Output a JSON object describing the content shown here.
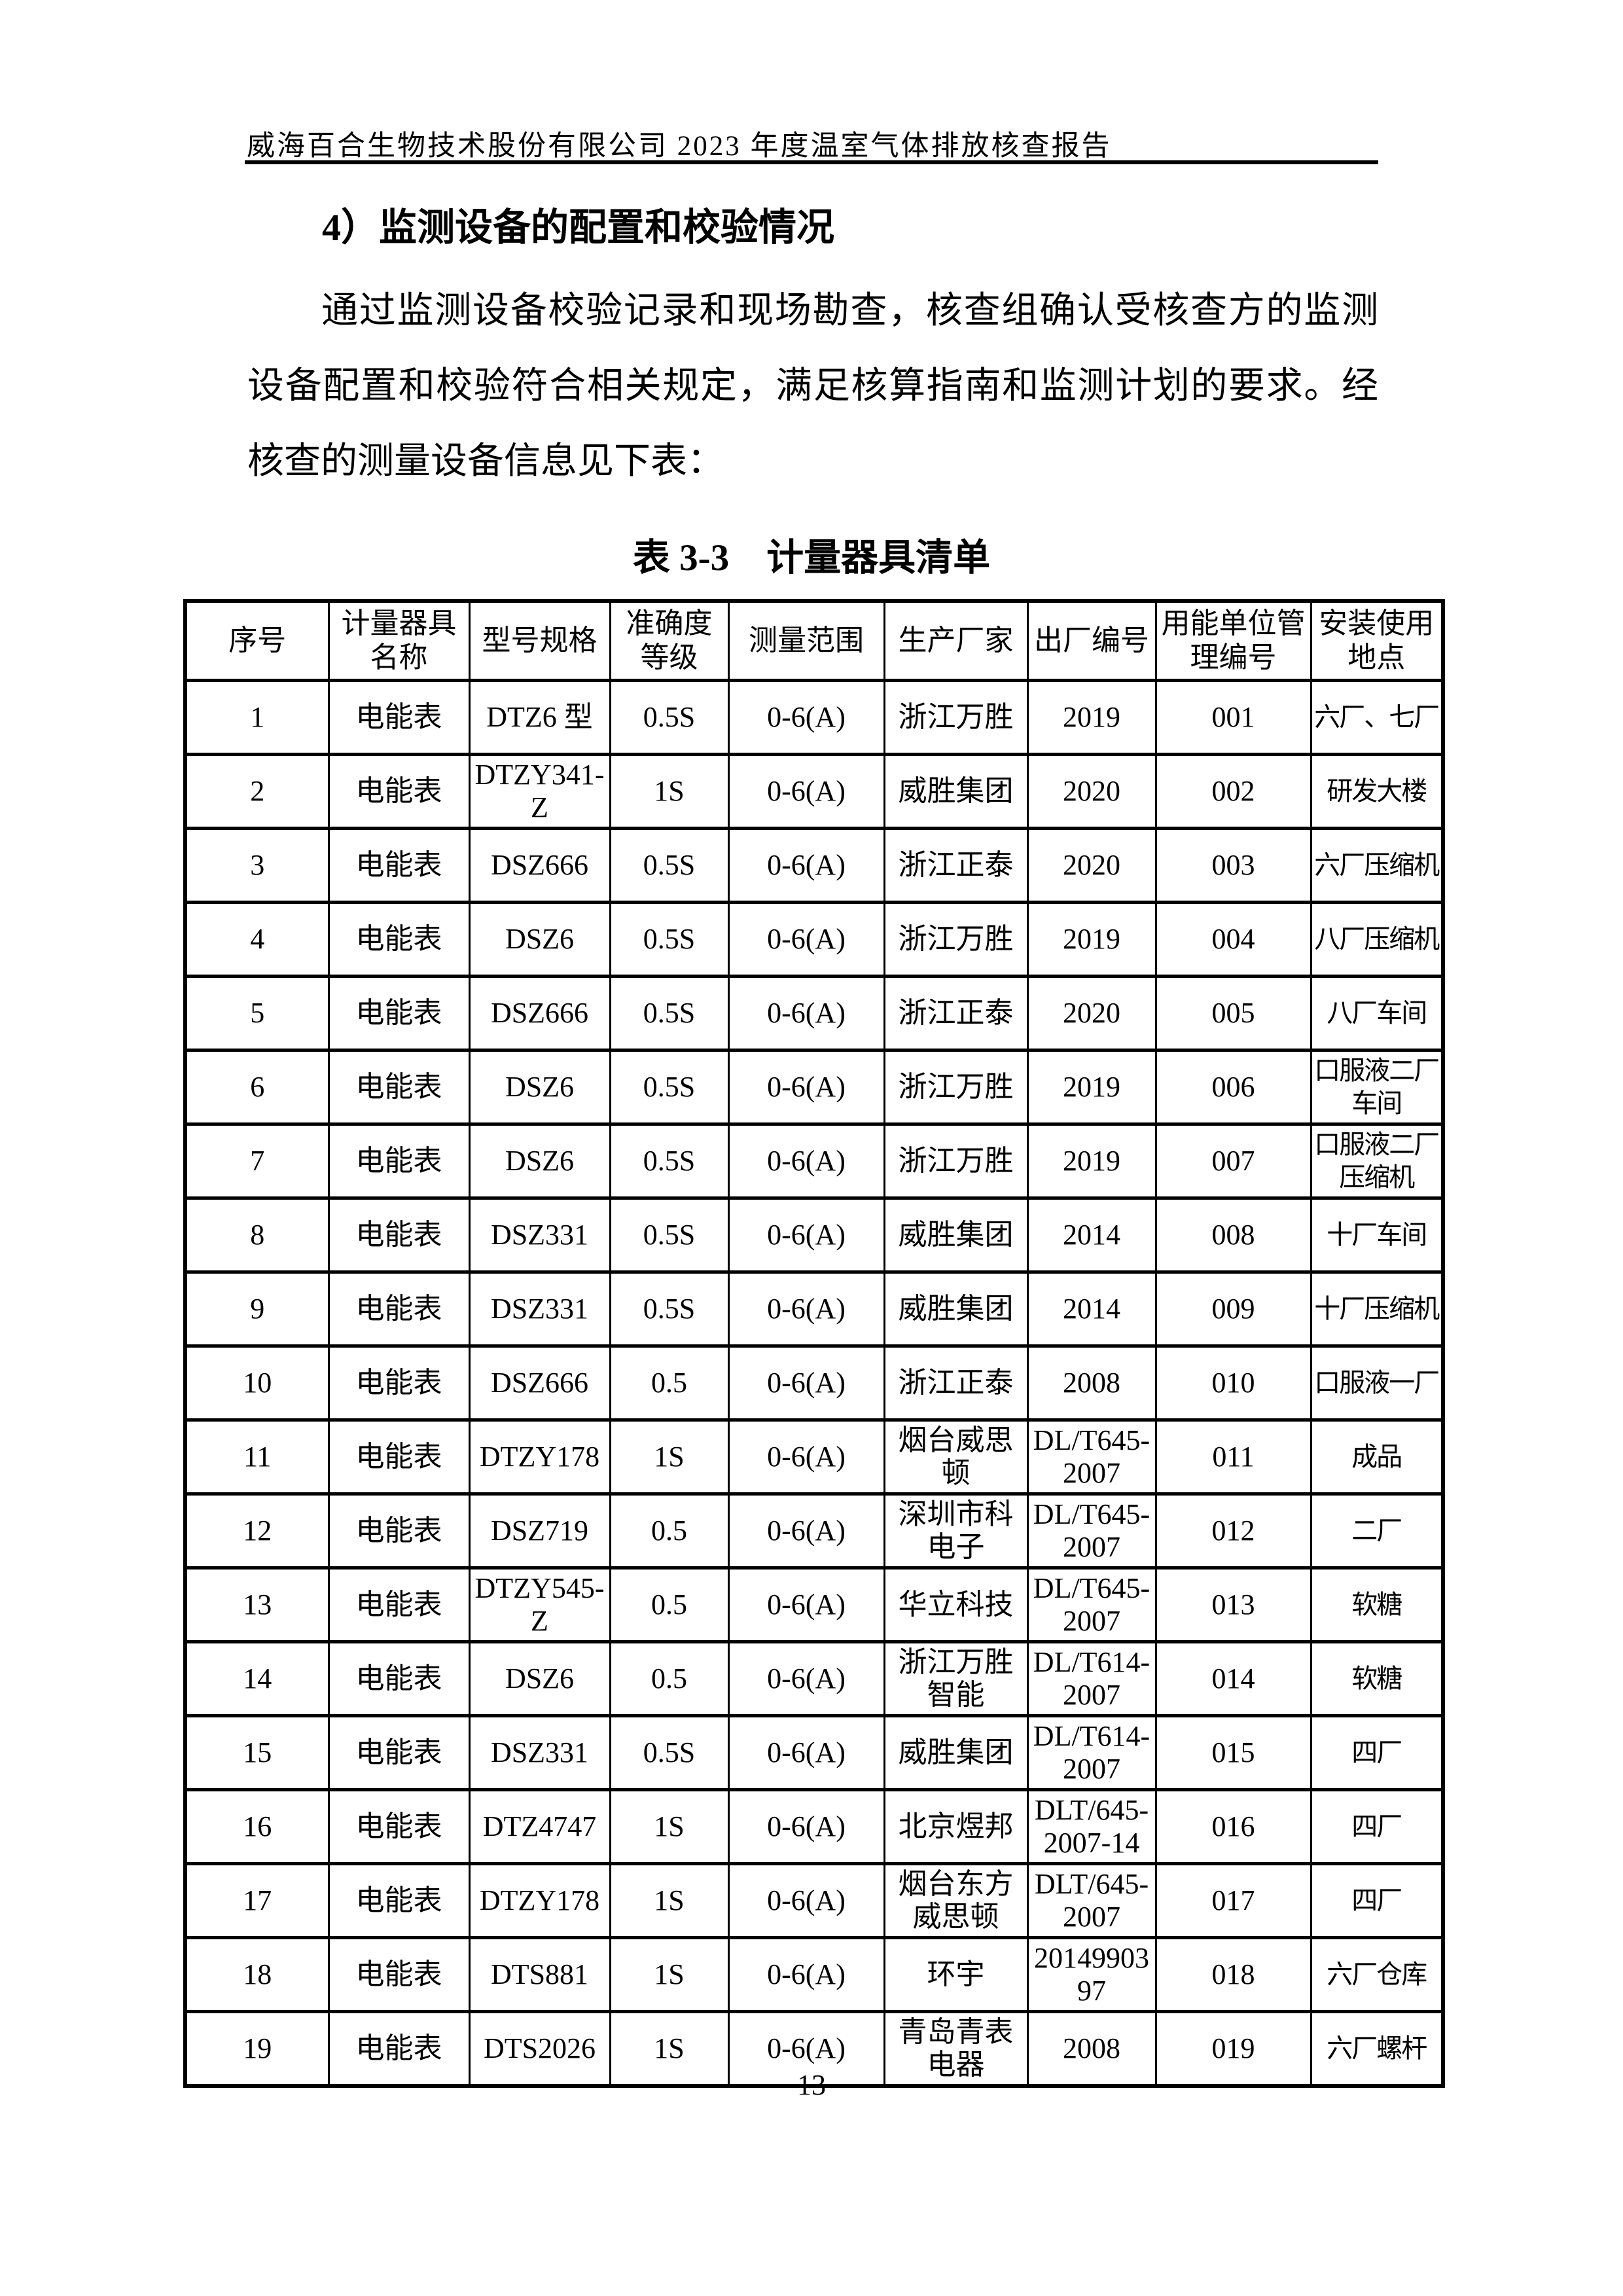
{
  "document": {
    "running_header": "威海百合生物技术股份有限公司 2023 年度温室气体排放核查报告",
    "section_heading": "4）监测设备的配置和校验情况",
    "paragraph": "通过监测设备校验记录和现场勘查，核查组确认受核查方的监测设备配置和校验符合相关规定，满足核算指南和监测计划的要求。经核查的测量设备信息见下表：",
    "table_caption": "表 3-3　计量器具清单",
    "page_number": "13"
  },
  "table": {
    "headers": [
      "序号",
      "计量器具名称",
      "型号规格",
      "准确度等级",
      "测量范围",
      "生产厂家",
      "出厂编号",
      "用能单位管理编号",
      "安装使用地点"
    ],
    "rows": [
      [
        "1",
        "电能表",
        "DTZ6 型",
        "0.5S",
        "0-6(A)",
        "浙江万胜",
        "2019",
        "001",
        "六厂、七厂"
      ],
      [
        "2",
        "电能表",
        "DTZY341-Z",
        "1S",
        "0-6(A)",
        "威胜集团",
        "2020",
        "002",
        "研发大楼"
      ],
      [
        "3",
        "电能表",
        "DSZ666",
        "0.5S",
        "0-6(A)",
        "浙江正泰",
        "2020",
        "003",
        "六厂压缩机"
      ],
      [
        "4",
        "电能表",
        "DSZ6",
        "0.5S",
        "0-6(A)",
        "浙江万胜",
        "2019",
        "004",
        "八厂压缩机"
      ],
      [
        "5",
        "电能表",
        "DSZ666",
        "0.5S",
        "0-6(A)",
        "浙江正泰",
        "2020",
        "005",
        "八厂车间"
      ],
      [
        "6",
        "电能表",
        "DSZ6",
        "0.5S",
        "0-6(A)",
        "浙江万胜",
        "2019",
        "006",
        "口服液二厂车间"
      ],
      [
        "7",
        "电能表",
        "DSZ6",
        "0.5S",
        "0-6(A)",
        "浙江万胜",
        "2019",
        "007",
        "口服液二厂压缩机"
      ],
      [
        "8",
        "电能表",
        "DSZ331",
        "0.5S",
        "0-6(A)",
        "威胜集团",
        "2014",
        "008",
        "十厂车间"
      ],
      [
        "9",
        "电能表",
        "DSZ331",
        "0.5S",
        "0-6(A)",
        "威胜集团",
        "2014",
        "009",
        "十厂压缩机"
      ],
      [
        "10",
        "电能表",
        "DSZ666",
        "0.5",
        "0-6(A)",
        "浙江正泰",
        "2008",
        "010",
        "口服液一厂"
      ],
      [
        "11",
        "电能表",
        "DTZY178",
        "1S",
        "0-6(A)",
        "烟台威思顿",
        "DL/T645-2007",
        "011",
        "成品"
      ],
      [
        "12",
        "电能表",
        "DSZ719",
        "0.5",
        "0-6(A)",
        "深圳市科电子",
        "DL/T645-2007",
        "012",
        "二厂"
      ],
      [
        "13",
        "电能表",
        "DTZY545-Z",
        "0.5",
        "0-6(A)",
        "华立科技",
        "DL/T645-2007",
        "013",
        "软糖"
      ],
      [
        "14",
        "电能表",
        "DSZ6",
        "0.5",
        "0-6(A)",
        "浙江万胜智能",
        "DL/T614-2007",
        "014",
        "软糖"
      ],
      [
        "15",
        "电能表",
        "DSZ331",
        "0.5S",
        "0-6(A)",
        "威胜集团",
        "DL/T614-2007",
        "015",
        "四厂"
      ],
      [
        "16",
        "电能表",
        "DTZ4747",
        "1S",
        "0-6(A)",
        "北京煜邦",
        "DLT/645-2007-14",
        "016",
        "四厂"
      ],
      [
        "17",
        "电能表",
        "DTZY178",
        "1S",
        "0-6(A)",
        "烟台东方威思顿",
        "DLT/645-2007",
        "017",
        "四厂"
      ],
      [
        "18",
        "电能表",
        "DTS881",
        "1S",
        "0-6(A)",
        "环宇",
        "2014990397",
        "018",
        "六厂仓库"
      ],
      [
        "19",
        "电能表",
        "DTS2026",
        "1S",
        "0-6(A)",
        "青岛青表电器",
        "2008",
        "019",
        "六厂螺杆"
      ]
    ]
  }
}
